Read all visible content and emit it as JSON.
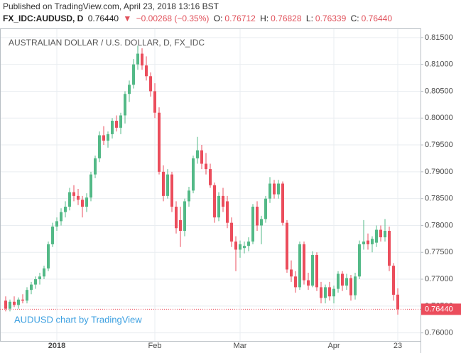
{
  "header": {
    "published": "Published on TradingView.com, April 23, 2018 13:16 BST",
    "symbol": "FX_IDC:AUDUSD, D",
    "last": "0.76440",
    "arrow": "▼",
    "change": "−0.00268 (−0.35%)",
    "o_label": "O:",
    "o": "0.76712",
    "h_label": "H:",
    "h": "0.76828",
    "l_label": "L:",
    "l": "0.76339",
    "c_label": "C:",
    "c": "0.76440"
  },
  "chart_data": {
    "type": "candlestick",
    "title": "AUSTRALIAN DOLLAR / U.S. DOLLAR, D, FX_IDC",
    "watermark": "AUDUSD chart by TradingView",
    "up_color": "#53b987",
    "down_color": "#eb4d5c",
    "grid": true,
    "ylim": [
      0.7585,
      0.8167
    ],
    "yticks": [
      {
        "value": 0.76,
        "label": "0.76000"
      },
      {
        "value": 0.765,
        "label": "0.76500"
      },
      {
        "value": 0.77,
        "label": "0.77000"
      },
      {
        "value": 0.775,
        "label": "0.77500"
      },
      {
        "value": 0.78,
        "label": "0.78000"
      },
      {
        "value": 0.785,
        "label": "0.78500"
      },
      {
        "value": 0.79,
        "label": "0.79000"
      },
      {
        "value": 0.795,
        "label": "0.79500"
      },
      {
        "value": 0.8,
        "label": "0.80000"
      },
      {
        "value": 0.805,
        "label": "0.80500"
      },
      {
        "value": 0.81,
        "label": "0.81000"
      },
      {
        "value": 0.815,
        "label": "0.81500"
      }
    ],
    "last_price": {
      "value": 0.7644,
      "label": "0.76440"
    },
    "categories": [
      null,
      null,
      null,
      null,
      null,
      null,
      null,
      null,
      null,
      null,
      null,
      null,
      "2018",
      null,
      null,
      null,
      null,
      null,
      null,
      null,
      null,
      null,
      null,
      null,
      null,
      null,
      null,
      null,
      null,
      null,
      null,
      null,
      null,
      null,
      null,
      "Feb",
      null,
      null,
      null,
      null,
      null,
      null,
      null,
      null,
      null,
      null,
      null,
      null,
      null,
      null,
      null,
      null,
      null,
      null,
      null,
      "Mar",
      null,
      null,
      null,
      null,
      null,
      null,
      null,
      null,
      null,
      null,
      null,
      null,
      null,
      null,
      null,
      null,
      null,
      null,
      null,
      null,
      null,
      "Apr",
      null,
      null,
      null,
      null,
      null,
      null,
      null,
      null,
      null,
      null,
      null,
      null,
      null,
      null,
      "23"
    ],
    "ohlc": [
      [
        0.766,
        0.7668,
        0.764,
        0.7645
      ],
      [
        0.7645,
        0.7662,
        0.764,
        0.7658
      ],
      [
        0.7658,
        0.7668,
        0.7648,
        0.7652
      ],
      [
        0.7652,
        0.7666,
        0.7645,
        0.7662
      ],
      [
        0.7662,
        0.7672,
        0.7655,
        0.766
      ],
      [
        0.766,
        0.7685,
        0.7655,
        0.768
      ],
      [
        0.768,
        0.7695,
        0.7672,
        0.769
      ],
      [
        0.769,
        0.7705,
        0.7682,
        0.77
      ],
      [
        0.77,
        0.7712,
        0.769,
        0.7705
      ],
      [
        0.7705,
        0.7725,
        0.77,
        0.772
      ],
      [
        0.772,
        0.777,
        0.7715,
        0.7765
      ],
      [
        0.7765,
        0.7805,
        0.776,
        0.7798
      ],
      [
        0.7798,
        0.7815,
        0.779,
        0.7808
      ],
      [
        0.7808,
        0.7832,
        0.78,
        0.7825
      ],
      [
        0.7825,
        0.7845,
        0.7815,
        0.7835
      ],
      [
        0.7835,
        0.787,
        0.7828,
        0.7862
      ],
      [
        0.7862,
        0.7875,
        0.7845,
        0.7855
      ],
      [
        0.7855,
        0.7868,
        0.7838,
        0.7848
      ],
      [
        0.7848,
        0.7855,
        0.7815,
        0.7835
      ],
      [
        0.7835,
        0.786,
        0.7825,
        0.7852
      ],
      [
        0.7852,
        0.79,
        0.7845,
        0.7895
      ],
      [
        0.7895,
        0.793,
        0.7888,
        0.7925
      ],
      [
        0.7925,
        0.7975,
        0.7918,
        0.7968
      ],
      [
        0.7968,
        0.7985,
        0.795,
        0.7958
      ],
      [
        0.7958,
        0.7975,
        0.7945,
        0.797
      ],
      [
        0.797,
        0.8,
        0.7962,
        0.7995
      ],
      [
        0.7995,
        0.8005,
        0.7975,
        0.7982
      ],
      [
        0.7982,
        0.801,
        0.797,
        0.8005
      ],
      [
        0.8005,
        0.805,
        0.799,
        0.8045
      ],
      [
        0.8045,
        0.807,
        0.803,
        0.8062
      ],
      [
        0.8062,
        0.811,
        0.8055,
        0.81
      ],
      [
        0.81,
        0.8135,
        0.809,
        0.812
      ],
      [
        0.812,
        0.813,
        0.809,
        0.8098
      ],
      [
        0.8098,
        0.8115,
        0.807,
        0.8078
      ],
      [
        0.8078,
        0.8085,
        0.804,
        0.805
      ],
      [
        0.805,
        0.8065,
        0.8,
        0.801
      ],
      [
        0.801,
        0.802,
        0.7895,
        0.79
      ],
      [
        0.79,
        0.7912,
        0.7845,
        0.7855
      ],
      [
        0.7855,
        0.7905,
        0.785,
        0.7895
      ],
      [
        0.7895,
        0.79,
        0.7825,
        0.7835
      ],
      [
        0.7835,
        0.7845,
        0.7785,
        0.7795
      ],
      [
        0.781,
        0.7835,
        0.776,
        0.779
      ],
      [
        0.779,
        0.785,
        0.778,
        0.7845
      ],
      [
        0.7845,
        0.7872,
        0.7835,
        0.7865
      ],
      [
        0.7865,
        0.793,
        0.786,
        0.7925
      ],
      [
        0.7925,
        0.7965,
        0.7915,
        0.794
      ],
      [
        0.794,
        0.795,
        0.7905,
        0.7915
      ],
      [
        0.7915,
        0.7935,
        0.7895,
        0.7905
      ],
      [
        0.7905,
        0.7915,
        0.787,
        0.7875
      ],
      [
        0.7875,
        0.788,
        0.7805,
        0.7815
      ],
      [
        0.7815,
        0.7862,
        0.7808,
        0.7855
      ],
      [
        0.7855,
        0.787,
        0.7825,
        0.7835
      ],
      [
        0.7845,
        0.7855,
        0.7795,
        0.7805
      ],
      [
        0.7805,
        0.7815,
        0.776,
        0.777
      ],
      [
        0.777,
        0.778,
        0.7715,
        0.7755
      ],
      [
        0.7755,
        0.7772,
        0.774,
        0.7765
      ],
      [
        0.7758,
        0.777,
        0.7748,
        0.7762
      ],
      [
        0.7762,
        0.7778,
        0.7752,
        0.777
      ],
      [
        0.777,
        0.784,
        0.7765,
        0.7835
      ],
      [
        0.7835,
        0.7845,
        0.779,
        0.78
      ],
      [
        0.78,
        0.7818,
        0.7765,
        0.7812
      ],
      [
        0.7812,
        0.7855,
        0.7805,
        0.785
      ],
      [
        0.785,
        0.789,
        0.7842,
        0.7878
      ],
      [
        0.7878,
        0.7885,
        0.785,
        0.7858
      ],
      [
        0.7858,
        0.7885,
        0.785,
        0.7878
      ],
      [
        0.7878,
        0.7882,
        0.78,
        0.7805
      ],
      [
        0.7805,
        0.781,
        0.7712,
        0.7718
      ],
      [
        0.7718,
        0.7735,
        0.7695,
        0.7705
      ],
      [
        0.7705,
        0.7715,
        0.7675,
        0.7685
      ],
      [
        0.7685,
        0.777,
        0.768,
        0.7765
      ],
      [
        0.7765,
        0.777,
        0.769,
        0.7698
      ],
      [
        0.7698,
        0.7712,
        0.768,
        0.7688
      ],
      [
        0.7688,
        0.7752,
        0.7685,
        0.7745
      ],
      [
        0.7745,
        0.775,
        0.7678,
        0.7685
      ],
      [
        0.7685,
        0.7695,
        0.7655,
        0.7665
      ],
      [
        0.7665,
        0.769,
        0.7655,
        0.7685
      ],
      [
        0.7685,
        0.7695,
        0.766,
        0.7668
      ],
      [
        0.7668,
        0.7688,
        0.7655,
        0.7682
      ],
      [
        0.7682,
        0.7715,
        0.7675,
        0.771
      ],
      [
        0.771,
        0.7715,
        0.7678,
        0.7688
      ],
      [
        0.7688,
        0.771,
        0.768,
        0.7702
      ],
      [
        0.7702,
        0.7708,
        0.766,
        0.767
      ],
      [
        0.767,
        0.7712,
        0.7662,
        0.7705
      ],
      [
        0.7705,
        0.7772,
        0.77,
        0.7765
      ],
      [
        0.7765,
        0.781,
        0.7755,
        0.777
      ],
      [
        0.7772,
        0.7785,
        0.7755,
        0.7765
      ],
      [
        0.7765,
        0.778,
        0.775,
        0.7775
      ],
      [
        0.7768,
        0.78,
        0.776,
        0.7792
      ],
      [
        0.7792,
        0.78,
        0.777,
        0.7778
      ],
      [
        0.7778,
        0.7812,
        0.777,
        0.779
      ],
      [
        0.779,
        0.7798,
        0.7715,
        0.7725
      ],
      [
        0.7725,
        0.773,
        0.766,
        0.7671
      ],
      [
        0.76712,
        0.76828,
        0.76339,
        0.7644
      ]
    ]
  }
}
